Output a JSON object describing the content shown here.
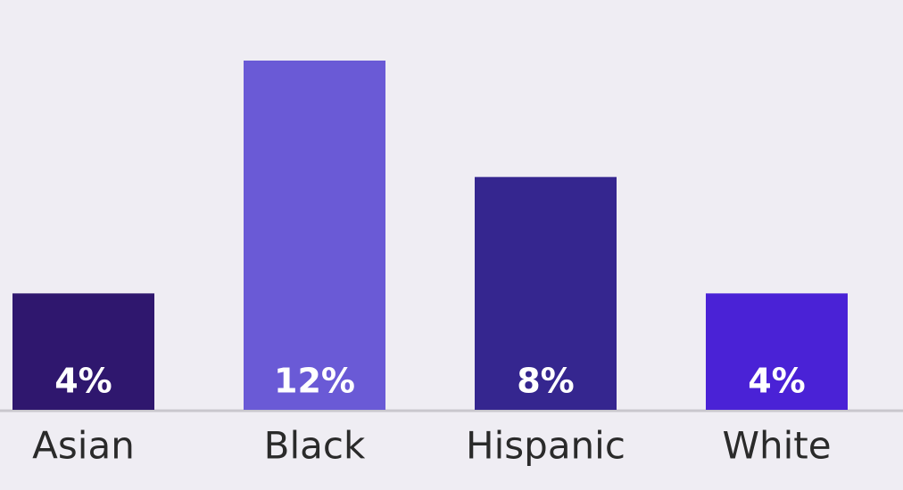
{
  "chart_data": {
    "type": "bar",
    "categories": [
      "Asian",
      "Black",
      "Hispanic",
      "White"
    ],
    "values": [
      4,
      12,
      8,
      4
    ],
    "value_labels": [
      "4%",
      "12%",
      "8%",
      "4%"
    ],
    "colors": [
      "#2f176e",
      "#6a5ad6",
      "#35268f",
      "#4a22d6"
    ]
  }
}
